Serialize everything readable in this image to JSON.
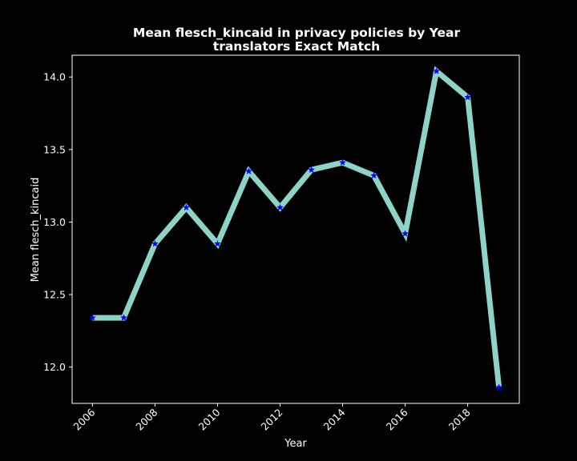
{
  "chart_data": {
    "type": "line",
    "title": "Mean flesch_kincaid in privacy policies by Year",
    "subtitle": "translators Exact Match",
    "xlabel": "Year",
    "ylabel": "Mean flesch_kincaid",
    "x": [
      2006,
      2007,
      2008,
      2009,
      2010,
      2011,
      2012,
      2013,
      2014,
      2015,
      2016,
      2017,
      2018,
      2019
    ],
    "series": [
      {
        "values": [
          12.34,
          12.34,
          12.85,
          13.1,
          12.85,
          13.35,
          13.1,
          13.36,
          13.41,
          13.32,
          12.92,
          14.04,
          13.86,
          11.86
        ],
        "line_color": "#8dd3c7",
        "marker_color": "#0000ff",
        "marker": "star"
      }
    ],
    "xticks": [
      2006,
      2008,
      2010,
      2012,
      2014,
      2016,
      2018
    ],
    "yticks": [
      12.0,
      12.5,
      13.0,
      13.5,
      14.0
    ],
    "xlim": [
      2005.35,
      2019.65
    ],
    "ylim": [
      11.75,
      14.15
    ],
    "grid": false,
    "colors": {
      "background": "#000000",
      "axes": "#ffffff",
      "text": "#ffffff"
    }
  }
}
